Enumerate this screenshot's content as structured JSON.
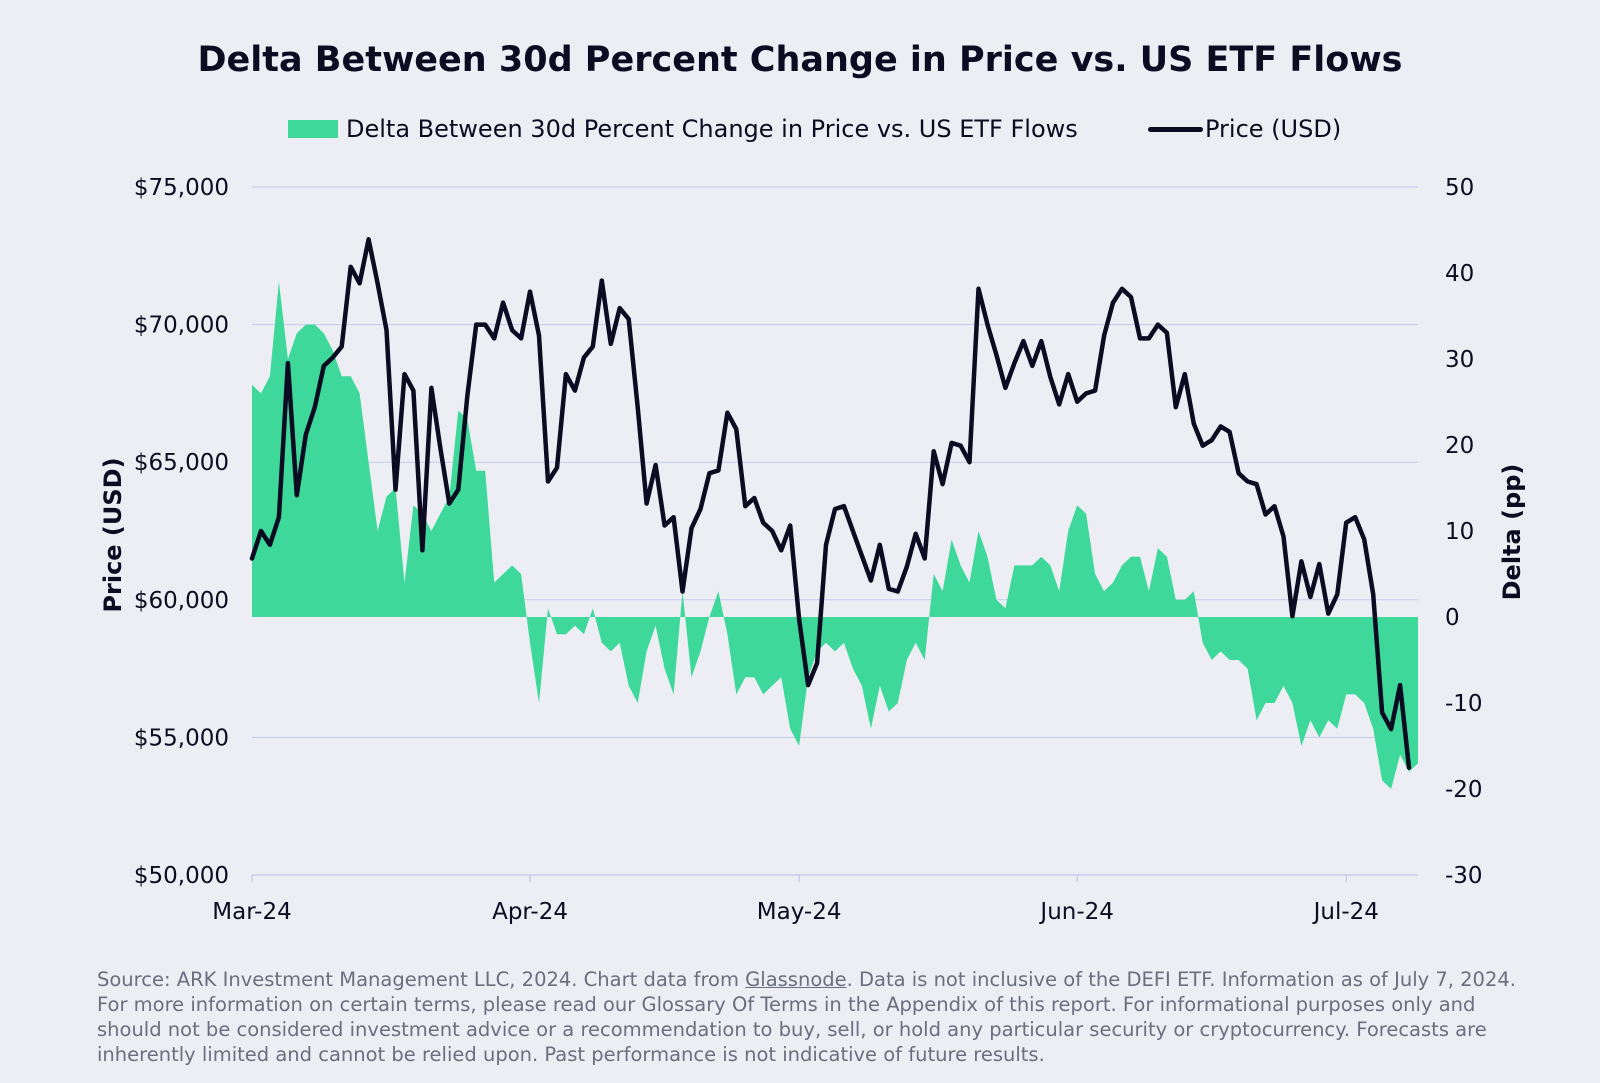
{
  "chart_data": {
    "type": "area+line",
    "title": "Delta Between 30d Percent Change in Price vs. US ETF Flows",
    "legend": {
      "placement": "top-center",
      "entries": [
        {
          "label": "Delta Between 30d Percent Change in Price vs. US ETF Flows",
          "color": "#3dd89a",
          "kind": "area"
        },
        {
          "label": "Price (USD)",
          "color": "#0b0c22",
          "kind": "line"
        }
      ]
    },
    "x_ticks": [
      {
        "label": "Mar-24",
        "day": 0
      },
      {
        "label": "Apr-24",
        "day": 31
      },
      {
        "label": "May-24",
        "day": 61
      },
      {
        "label": "Jun-24",
        "day": 92
      },
      {
        "label": "Jul-24",
        "day": 122
      }
    ],
    "y_left": {
      "label": "Price (USD)",
      "range": [
        50000,
        75000
      ],
      "ticks": [
        {
          "value": 75000,
          "label": "$75,000"
        },
        {
          "value": 70000,
          "label": "$70,000"
        },
        {
          "value": 65000,
          "label": "$65,000"
        },
        {
          "value": 60000,
          "label": "$60,000"
        },
        {
          "value": 55000,
          "label": "$55,000"
        },
        {
          "value": 50000,
          "label": "$50,000"
        }
      ]
    },
    "y_right": {
      "label": "Delta (pp)",
      "range": [
        -30,
        50
      ],
      "ticks": [
        {
          "value": 50,
          "label": "50"
        },
        {
          "value": 40,
          "label": "40"
        },
        {
          "value": 30,
          "label": "30"
        },
        {
          "value": 20,
          "label": "20"
        },
        {
          "value": 10,
          "label": "10"
        },
        {
          "value": 0,
          "label": "0"
        },
        {
          "value": -10,
          "label": "-10"
        },
        {
          "value": -20,
          "label": "-20"
        },
        {
          "value": -30,
          "label": "-30"
        }
      ]
    },
    "grid": true,
    "delta_series": {
      "name": "Delta Between 30d Percent Change in Price vs. US ETF Flows",
      "color": "#3dd89a",
      "points": [
        [
          0,
          27
        ],
        [
          1,
          26
        ],
        [
          2,
          28
        ],
        [
          3,
          39
        ],
        [
          4,
          30
        ],
        [
          5,
          33
        ],
        [
          6,
          34
        ],
        [
          7,
          34
        ],
        [
          8,
          33
        ],
        [
          9,
          31
        ],
        [
          10,
          28
        ],
        [
          11,
          28
        ],
        [
          12,
          26
        ],
        [
          13,
          18
        ],
        [
          14,
          10
        ],
        [
          15,
          14
        ],
        [
          16,
          15
        ],
        [
          17,
          4
        ],
        [
          18,
          13
        ],
        [
          19,
          12
        ],
        [
          20,
          10
        ],
        [
          21,
          12
        ],
        [
          22,
          14
        ],
        [
          23,
          24
        ],
        [
          24,
          23
        ],
        [
          25,
          17
        ],
        [
          26,
          17
        ],
        [
          27,
          4
        ],
        [
          28,
          5
        ],
        [
          29,
          6
        ],
        [
          30,
          5
        ],
        [
          31,
          -3
        ],
        [
          32,
          -10
        ],
        [
          33,
          1
        ],
        [
          34,
          -2
        ],
        [
          35,
          -2
        ],
        [
          36,
          -1
        ],
        [
          37,
          -2
        ],
        [
          38,
          1
        ],
        [
          39,
          -3
        ],
        [
          40,
          -4
        ],
        [
          41,
          -3
        ],
        [
          42,
          -8
        ],
        [
          43,
          -10
        ],
        [
          44,
          -4
        ],
        [
          45,
          -1
        ],
        [
          46,
          -6
        ],
        [
          47,
          -9
        ],
        [
          48,
          3
        ],
        [
          49,
          -7
        ],
        [
          50,
          -4
        ],
        [
          51,
          0
        ],
        [
          52,
          3
        ],
        [
          53,
          -2
        ],
        [
          54,
          -9
        ],
        [
          55,
          -7
        ],
        [
          56,
          -7
        ],
        [
          57,
          -9
        ],
        [
          58,
          -8
        ],
        [
          59,
          -7
        ],
        [
          60,
          -13
        ],
        [
          61,
          -15
        ],
        [
          62,
          -7
        ],
        [
          63,
          -4
        ],
        [
          64,
          -3
        ],
        [
          65,
          -4
        ],
        [
          66,
          -3
        ],
        [
          67,
          -6
        ],
        [
          68,
          -8
        ],
        [
          69,
          -13
        ],
        [
          70,
          -8
        ],
        [
          71,
          -11
        ],
        [
          72,
          -10
        ],
        [
          73,
          -5
        ],
        [
          74,
          -3
        ],
        [
          75,
          -5
        ],
        [
          76,
          5
        ],
        [
          77,
          3
        ],
        [
          78,
          9
        ],
        [
          79,
          6
        ],
        [
          80,
          4
        ],
        [
          81,
          10
        ],
        [
          82,
          7
        ],
        [
          83,
          2
        ],
        [
          84,
          1
        ],
        [
          85,
          6
        ],
        [
          86,
          6
        ],
        [
          87,
          6
        ],
        [
          88,
          7
        ],
        [
          89,
          6
        ],
        [
          90,
          3
        ],
        [
          91,
          10
        ],
        [
          92,
          13
        ],
        [
          93,
          12
        ],
        [
          94,
          5
        ],
        [
          95,
          3
        ],
        [
          96,
          4
        ],
        [
          97,
          6
        ],
        [
          98,
          7
        ],
        [
          99,
          7
        ],
        [
          100,
          3
        ],
        [
          101,
          8
        ],
        [
          102,
          7
        ],
        [
          103,
          2
        ],
        [
          104,
          2
        ],
        [
          105,
          3
        ],
        [
          106,
          -3
        ],
        [
          107,
          -5
        ],
        [
          108,
          -4
        ],
        [
          109,
          -5
        ],
        [
          110,
          -5
        ],
        [
          111,
          -6
        ],
        [
          112,
          -12
        ],
        [
          113,
          -10
        ],
        [
          114,
          -10
        ],
        [
          115,
          -8
        ],
        [
          116,
          -10
        ],
        [
          117,
          -15
        ],
        [
          118,
          -12
        ],
        [
          119,
          -14
        ],
        [
          120,
          -12
        ],
        [
          121,
          -13
        ],
        [
          122,
          -9
        ],
        [
          123,
          -9
        ],
        [
          124,
          -10
        ],
        [
          125,
          -13
        ],
        [
          126,
          -19
        ],
        [
          127,
          -20
        ],
        [
          128,
          -16
        ],
        [
          129,
          -18
        ],
        [
          130,
          -17
        ]
      ]
    },
    "price_series": {
      "name": "Price (USD)",
      "color": "#0b0c22",
      "points": [
        [
          0,
          61500
        ],
        [
          1,
          62500
        ],
        [
          2,
          62000
        ],
        [
          3,
          63000
        ],
        [
          4,
          68600
        ],
        [
          5,
          63800
        ],
        [
          6,
          66000
        ],
        [
          7,
          67000
        ],
        [
          8,
          68500
        ],
        [
          9,
          68800
        ],
        [
          10,
          69200
        ],
        [
          11,
          72100
        ],
        [
          12,
          71500
        ],
        [
          13,
          73100
        ],
        [
          14,
          71500
        ],
        [
          15,
          69800
        ],
        [
          16,
          64000
        ],
        [
          17,
          68200
        ],
        [
          18,
          67600
        ],
        [
          19,
          61800
        ],
        [
          20,
          67700
        ],
        [
          21,
          65500
        ],
        [
          22,
          63500
        ],
        [
          23,
          64000
        ],
        [
          24,
          67400
        ],
        [
          25,
          70000
        ],
        [
          26,
          70000
        ],
        [
          27,
          69500
        ],
        [
          28,
          70800
        ],
        [
          29,
          69800
        ],
        [
          30,
          69500
        ],
        [
          31,
          71200
        ],
        [
          32,
          69600
        ],
        [
          33,
          64300
        ],
        [
          34,
          64800
        ],
        [
          35,
          68200
        ],
        [
          36,
          67600
        ],
        [
          37,
          68800
        ],
        [
          38,
          69200
        ],
        [
          39,
          71600
        ],
        [
          40,
          69300
        ],
        [
          41,
          70600
        ],
        [
          42,
          70200
        ],
        [
          43,
          67000
        ],
        [
          44,
          63500
        ],
        [
          45,
          64900
        ],
        [
          46,
          62700
        ],
        [
          47,
          63000
        ],
        [
          48,
          60300
        ],
        [
          49,
          62600
        ],
        [
          50,
          63300
        ],
        [
          51,
          64600
        ],
        [
          52,
          64700
        ],
        [
          53,
          66800
        ],
        [
          54,
          66200
        ],
        [
          55,
          63400
        ],
        [
          56,
          63700
        ],
        [
          57,
          62800
        ],
        [
          58,
          62500
        ],
        [
          59,
          61800
        ],
        [
          60,
          62700
        ],
        [
          61,
          59300
        ],
        [
          62,
          56900
        ],
        [
          63,
          57700
        ],
        [
          64,
          62000
        ],
        [
          65,
          63300
        ],
        [
          66,
          63400
        ],
        [
          67,
          62500
        ],
        [
          68,
          61600
        ],
        [
          69,
          60700
        ],
        [
          70,
          62000
        ],
        [
          71,
          60400
        ],
        [
          72,
          60300
        ],
        [
          73,
          61200
        ],
        [
          74,
          62400
        ],
        [
          75,
          61500
        ],
        [
          76,
          65400
        ],
        [
          77,
          64200
        ],
        [
          78,
          65700
        ],
        [
          79,
          65600
        ],
        [
          80,
          65000
        ],
        [
          81,
          71300
        ],
        [
          82,
          70000
        ],
        [
          83,
          68900
        ],
        [
          84,
          67700
        ],
        [
          85,
          68600
        ],
        [
          86,
          69400
        ],
        [
          87,
          68500
        ],
        [
          88,
          69400
        ],
        [
          89,
          68100
        ],
        [
          90,
          67100
        ],
        [
          91,
          68200
        ],
        [
          92,
          67200
        ],
        [
          93,
          67500
        ],
        [
          94,
          67600
        ],
        [
          95,
          69600
        ],
        [
          96,
          70800
        ],
        [
          97,
          71300
        ],
        [
          98,
          71000
        ],
        [
          99,
          69500
        ],
        [
          100,
          69500
        ],
        [
          101,
          70000
        ],
        [
          102,
          69700
        ],
        [
          103,
          67000
        ],
        [
          104,
          68200
        ],
        [
          105,
          66400
        ],
        [
          106,
          65600
        ],
        [
          107,
          65800
        ],
        [
          108,
          66300
        ],
        [
          109,
          66100
        ],
        [
          110,
          64600
        ],
        [
          111,
          64300
        ],
        [
          112,
          64200
        ],
        [
          113,
          63100
        ],
        [
          114,
          63400
        ],
        [
          115,
          62300
        ],
        [
          116,
          59400
        ],
        [
          117,
          61400
        ],
        [
          118,
          60100
        ],
        [
          119,
          61300
        ],
        [
          120,
          59500
        ],
        [
          121,
          60200
        ],
        [
          122,
          62800
        ],
        [
          123,
          63000
        ],
        [
          124,
          62200
        ],
        [
          125,
          60200
        ],
        [
          126,
          55900
        ],
        [
          127,
          55300
        ],
        [
          128,
          56900
        ],
        [
          129,
          53900
        ]
      ]
    }
  },
  "footnote": {
    "text_before_link": "Source: ARK Investment Management LLC, 2024. Chart data from ",
    "link_text": "Glassnode",
    "text_after_link": ". Data is not inclusive of the DEFI ETF. Information as of July 7, 2024. For more information on certain terms, please read our Glossary Of Terms in the Appendix of this report. For informational purposes only and should not be considered investment advice or a recommendation to buy, sell, or hold any particular security or cryptocurrency. Forecasts are inherently limited and cannot be relied upon. Past performance is not indicative of future results."
  }
}
